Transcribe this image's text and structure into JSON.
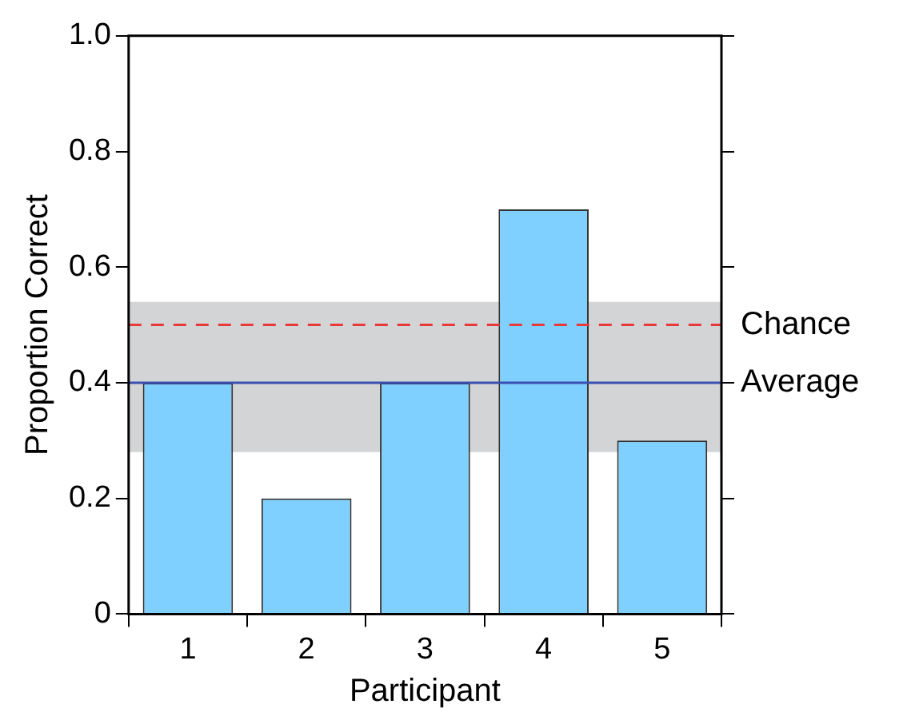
{
  "chart_data": {
    "type": "bar",
    "xlabel": "Participant",
    "ylabel": "Proportion Correct",
    "categories": [
      "1",
      "2",
      "3",
      "4",
      "5"
    ],
    "values": [
      0.4,
      0.2,
      0.4,
      0.7,
      0.3
    ],
    "color": "#80d0ff",
    "ylim": [
      0,
      1.0
    ],
    "yticks": [
      {
        "value": 0,
        "label": "0"
      },
      {
        "value": 0.2,
        "label": "0.2"
      },
      {
        "value": 0.4,
        "label": "0.4"
      },
      {
        "value": 0.6,
        "label": "0.6"
      },
      {
        "value": 0.8,
        "label": "0.8"
      },
      {
        "value": 1.0,
        "label": "1.0"
      }
    ],
    "grid": false,
    "ref_lines": [
      {
        "axis": "y",
        "value": 0.5,
        "label": "Chance",
        "color": "#e8393b",
        "line_style": "dashed"
      },
      {
        "axis": "y",
        "value": 0.4,
        "label": "Average",
        "color": "#3a4fb0",
        "line_style": "solid"
      }
    ],
    "bands": [
      {
        "axis": "y",
        "from": 0.28,
        "to": 0.54,
        "color": "#d3d4d6"
      }
    ]
  }
}
